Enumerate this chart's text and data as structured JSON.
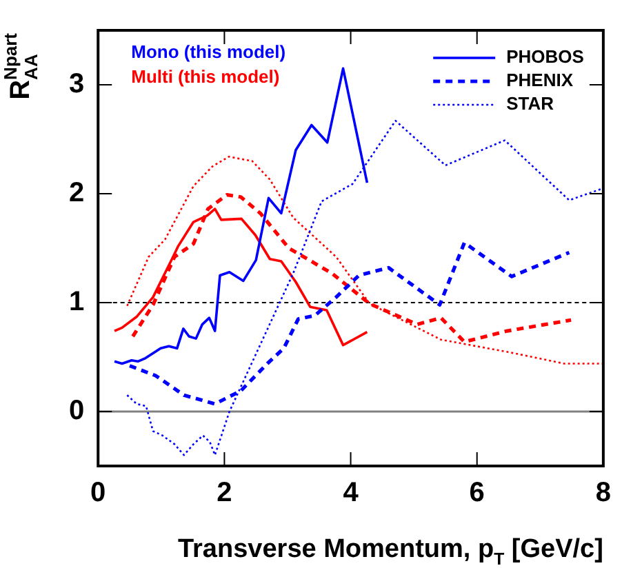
{
  "chart_data": {
    "type": "line",
    "xlabel": "Transverse Momentum, p$_{T}$ [GeV/c]",
    "ylabel": "R$_{AA}$$^{Npart}$",
    "xlim": [
      0,
      8
    ],
    "xticks": [
      0,
      2,
      4,
      6,
      8
    ],
    "ylim": [
      -0.5,
      3.5
    ],
    "yticks": [
      0,
      1,
      2,
      3
    ],
    "grid": false,
    "legend": "top right",
    "marker": "none",
    "annotations": [
      "Mono (this model)",
      "Multi (this model)"
    ],
    "ref_lines": [
      {
        "axis": "y",
        "value": 1,
        "color": "#000000",
        "line_style": "dashed"
      },
      {
        "axis": "y",
        "value": 0,
        "color": "#808080",
        "line_style": "solid"
      }
    ],
    "series": [
      {
        "name": "PHOBOS",
        "color": "#0000ff",
        "line_style": "solid",
        "x": [
          0.26,
          0.38,
          0.53,
          0.63,
          0.75,
          0.99,
          1.12,
          1.25,
          1.35,
          1.44,
          1.55,
          1.65,
          1.76,
          1.85,
          1.93,
          2.08,
          2.3,
          2.5,
          2.7,
          2.9,
          3.13,
          3.38,
          3.63,
          3.88,
          4.26
        ],
        "values": [
          0.46,
          0.44,
          0.47,
          0.46,
          0.49,
          0.58,
          0.6,
          0.58,
          0.76,
          0.69,
          0.67,
          0.8,
          0.86,
          0.74,
          1.25,
          1.28,
          1.2,
          1.39,
          1.96,
          1.82,
          2.4,
          2.63,
          2.47,
          3.15,
          2.1
        ]
      },
      {
        "name": "PHENIX",
        "color": "#0000ff",
        "line_style": "dashed",
        "x": [
          0.5,
          0.91,
          1.36,
          1.85,
          2.26,
          2.68,
          2.94,
          3.17,
          3.43,
          3.77,
          4.13,
          4.6,
          5.41,
          5.8,
          6.55,
          7.46
        ],
        "values": [
          0.42,
          0.33,
          0.15,
          0.07,
          0.19,
          0.44,
          0.58,
          0.85,
          0.88,
          1.05,
          1.25,
          1.32,
          0.98,
          1.55,
          1.24,
          1.46
        ]
      },
      {
        "name": "STAR",
        "color": "#0000ff",
        "line_style": "dotted",
        "x": [
          0.46,
          0.61,
          0.76,
          0.87,
          1.02,
          1.21,
          1.36,
          1.51,
          1.66,
          1.77,
          1.85,
          2.08,
          3.09,
          3.54,
          4.03,
          4.71,
          5.5,
          6.44,
          7.46,
          8.0
        ],
        "values": [
          0.15,
          0.07,
          0.05,
          -0.18,
          -0.22,
          -0.3,
          -0.4,
          -0.3,
          -0.22,
          -0.28,
          -0.4,
          0.0,
          1.27,
          1.93,
          2.09,
          2.67,
          2.26,
          2.49,
          1.94,
          2.05
        ]
      },
      {
        "color": "#ff0000",
        "line_style": "solid",
        "x": [
          0.26,
          0.38,
          0.61,
          0.87,
          1.17,
          1.27,
          1.51,
          1.73,
          1.85,
          1.95,
          2.27,
          2.49,
          2.72,
          2.9,
          3.13,
          3.36,
          3.62,
          3.88,
          4.26
        ],
        "values": [
          0.74,
          0.77,
          0.87,
          1.05,
          1.4,
          1.52,
          1.74,
          1.8,
          1.86,
          1.76,
          1.77,
          1.62,
          1.4,
          1.38,
          1.19,
          0.96,
          0.93,
          0.61,
          0.73
        ]
      },
      {
        "color": "#ff0000",
        "line_style": "dashed",
        "x": [
          0.55,
          0.87,
          1.21,
          1.51,
          1.74,
          2.04,
          2.26,
          2.57,
          3.02,
          3.7,
          4.3,
          5.05,
          5.43,
          5.8,
          6.48,
          7.49
        ],
        "values": [
          0.69,
          0.98,
          1.42,
          1.54,
          1.86,
          1.99,
          1.97,
          1.82,
          1.5,
          1.27,
          0.99,
          0.8,
          0.86,
          0.64,
          0.74,
          0.84
        ]
      },
      {
        "color": "#ff0000",
        "line_style": "dotted",
        "x": [
          0.46,
          0.8,
          1.06,
          1.51,
          1.81,
          2.07,
          2.44,
          2.72,
          3.09,
          3.77,
          4.3,
          5.43,
          6.55,
          7.38,
          8.0
        ],
        "values": [
          0.97,
          1.42,
          1.58,
          2.07,
          2.25,
          2.34,
          2.3,
          2.13,
          1.78,
          1.42,
          0.99,
          0.66,
          0.54,
          0.44,
          0.44
        ]
      }
    ]
  }
}
